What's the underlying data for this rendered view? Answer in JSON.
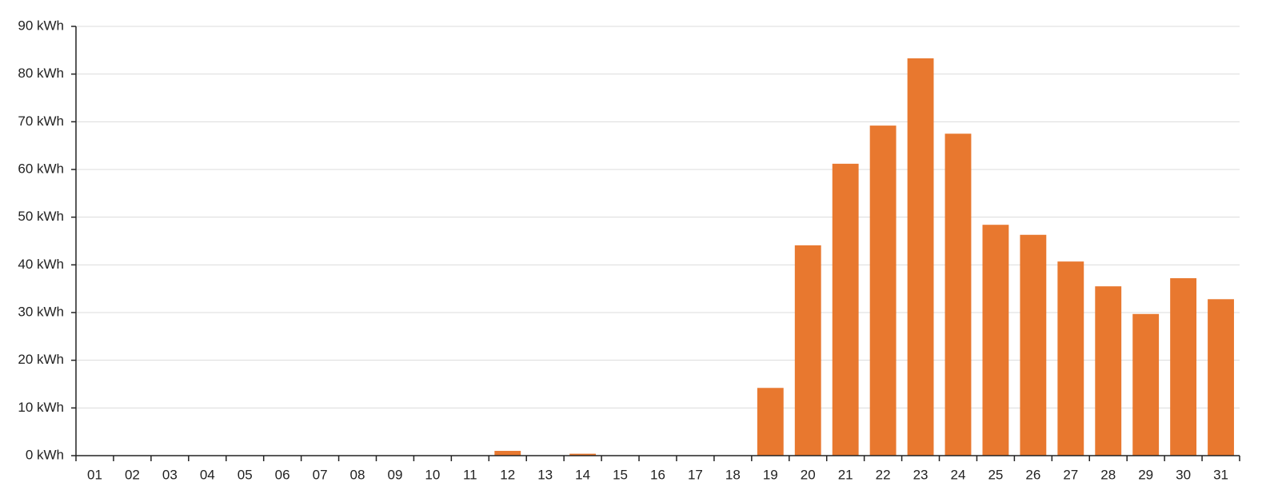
{
  "chart_data": {
    "type": "bar",
    "categories": [
      "01",
      "02",
      "03",
      "04",
      "05",
      "06",
      "07",
      "08",
      "09",
      "10",
      "11",
      "12",
      "13",
      "14",
      "15",
      "16",
      "17",
      "18",
      "19",
      "20",
      "21",
      "22",
      "23",
      "24",
      "25",
      "26",
      "27",
      "28",
      "29",
      "30",
      "31"
    ],
    "values": [
      0,
      0,
      0,
      0,
      0,
      0,
      0,
      0,
      0,
      0,
      0,
      1.0,
      0,
      0.4,
      0,
      0,
      0,
      0,
      14.2,
      44.1,
      61.2,
      69.2,
      83.3,
      67.5,
      48.4,
      46.3,
      40.7,
      35.5,
      29.7,
      37.2,
      32.8
    ],
    "color": "#e8782f",
    "ylim": [
      0,
      90
    ],
    "yticks": [
      {
        "value": 0,
        "label": "0 kWh"
      },
      {
        "value": 10,
        "label": "10 kWh"
      },
      {
        "value": 20,
        "label": "20 kWh"
      },
      {
        "value": 30,
        "label": "30 kWh"
      },
      {
        "value": 40,
        "label": "40 kWh"
      },
      {
        "value": 50,
        "label": "50 kWh"
      },
      {
        "value": 60,
        "label": "60 kWh"
      },
      {
        "value": 70,
        "label": "70 kWh"
      },
      {
        "value": 80,
        "label": "80 kWh"
      },
      {
        "value": 90,
        "label": "90 kWh"
      }
    ],
    "grid": true
  }
}
